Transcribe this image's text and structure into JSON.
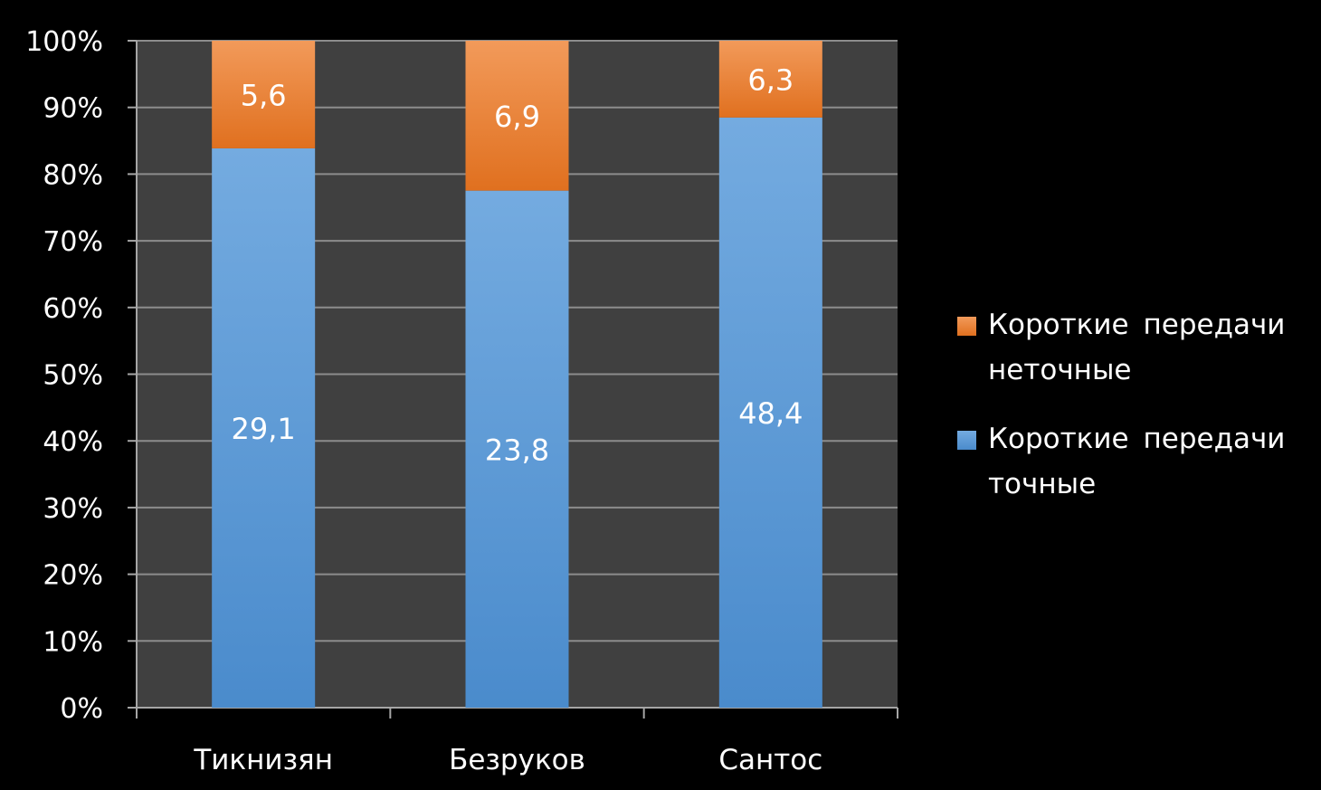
{
  "chart_data": {
    "type": "bar",
    "stacked": "percent",
    "categories": [
      "Тикнизян",
      "Безруков",
      "Сантос"
    ],
    "series": [
      {
        "name": "Короткие передачи точные",
        "values": [
          29.1,
          23.8,
          48.4
        ],
        "color": "#5b9bd5"
      },
      {
        "name": "Короткие передачи неточные",
        "values": [
          5.6,
          6.9,
          6.3
        ],
        "color": "#ed7d31"
      }
    ],
    "value_labels": [
      [
        "29,1",
        "23,8",
        "48,4"
      ],
      [
        "5,6",
        "6,9",
        "6,3"
      ]
    ],
    "y_ticks": [
      "0%",
      "10%",
      "20%",
      "30%",
      "40%",
      "50%",
      "60%",
      "70%",
      "80%",
      "90%",
      "100%"
    ],
    "ylim": [
      0,
      100
    ],
    "grid": true,
    "legend_position": "right",
    "legend_order": [
      1,
      0
    ],
    "colors": {
      "background": "#000000",
      "plot_area": "#404040",
      "gridline": "#8c8c8c",
      "axis": "#a6a6a6",
      "text": "#ffffff"
    }
  }
}
